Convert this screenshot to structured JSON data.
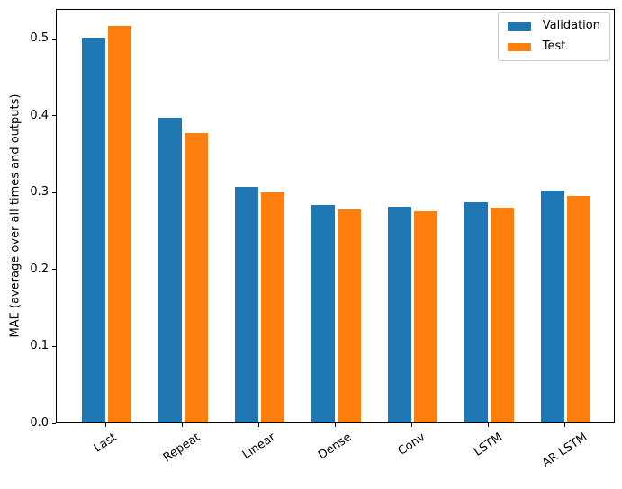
{
  "figure": {
    "background": "#ffffff"
  },
  "chart_data": {
    "type": "bar",
    "title": "",
    "categories": [
      "Last",
      "Repeat",
      "Linear",
      "Dense",
      "Conv",
      "LSTM",
      "AR LSTM"
    ],
    "series": [
      {
        "name": "Validation",
        "color": "#1f77b4",
        "values": [
          0.501,
          0.396,
          0.306,
          0.283,
          0.281,
          0.286,
          0.302
        ]
      },
      {
        "name": "Test",
        "color": "#ff7f0e",
        "values": [
          0.516,
          0.377,
          0.299,
          0.277,
          0.275,
          0.279,
          0.295
        ]
      }
    ],
    "xlabel": "",
    "ylabel": "MAE (average over all times and outputs)",
    "ylim": [
      0,
      0.539
    ],
    "xlim": [
      -0.652,
      6.652
    ],
    "yticks": [
      "0.0",
      "0.1",
      "0.2",
      "0.3",
      "0.4",
      "0.5"
    ],
    "ytick_values": [
      0,
      0.1,
      0.2,
      0.3,
      0.4,
      0.5
    ],
    "bar_width": 0.3,
    "group_offsets": [
      -0.17,
      0.17
    ],
    "xlabel_rotation_deg": 34,
    "grid": false,
    "legend": {
      "position": "upper right",
      "entries": [
        "Validation",
        "Test"
      ]
    }
  }
}
